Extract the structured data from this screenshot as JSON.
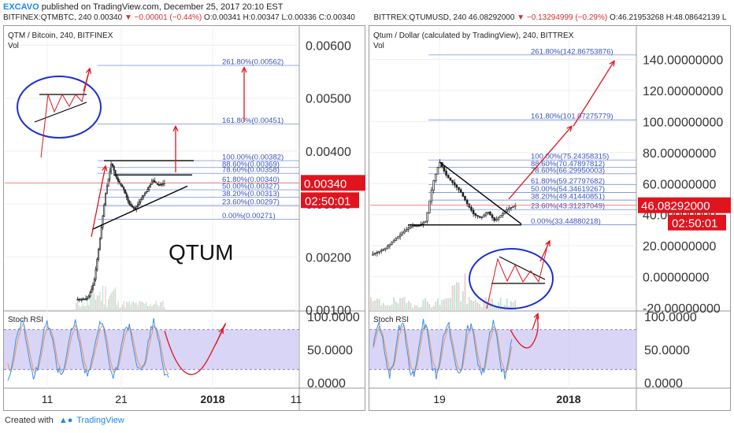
{
  "header": {
    "author": "EXCAVO",
    "published": "published on TradingView.com, December 25, 2017 20:10 EST",
    "left_quote": {
      "symbol": "BITFINEX:QTMBTC, 240",
      "last": "0.00340",
      "change": "▼ −0.00001 (−0.44%)",
      "ohlc": "O:0.00341 H:0.00347 L:0.00336 C:0.00340"
    },
    "right_quote": {
      "symbol": "BITTREX:QTUMUSD, 240",
      "last": "46.08292000",
      "change": "▼ −0.13294999 (−0.29%)",
      "ohlc": "O:46.21953268 H:48.08642139 L"
    }
  },
  "footer": {
    "created_with": "Created with",
    "brand": "TradingView"
  },
  "colors": {
    "candle": "#1f1f1f",
    "fib": "#5b7bd6",
    "arrow": "#e0141e",
    "circle": "#1a2fd0",
    "price_tag": "#e0141e",
    "stoch_band": "#c9c3f2",
    "stoch_k": "#3b8ee8",
    "stoch_d": "#e8975a"
  },
  "chart_data": [
    {
      "id": "left",
      "type": "candlestick",
      "title": "QTM / Bitcoin, 240, BITFINEX",
      "volume_label": "Vol",
      "annotation": "QTUM",
      "y_ticks": [
        "0.00600",
        "0.00500",
        "0.00400",
        "0.00300",
        "0.00200",
        "0.00100"
      ],
      "y_values": [
        0.006,
        0.005,
        0.004,
        0.003,
        0.002,
        0.001
      ],
      "ylim": [
        0.00098,
        0.00632
      ],
      "x_ticks": [
        "11",
        "21",
        "2018",
        "11"
      ],
      "last_price": "0.00340",
      "countdown": "02:50:01",
      "fib_levels": [
        {
          "label": "261.80%(0.00562)",
          "value": 0.00562
        },
        {
          "label": "161.80%(0.00451)",
          "value": 0.00451
        },
        {
          "label": "100.00%(0.00382)",
          "value": 0.00382
        },
        {
          "label": "88.60%(0.00369)",
          "value": 0.00369
        },
        {
          "label": "78.60%(0.00358)",
          "value": 0.00358
        },
        {
          "label": "61.80%(0.00340)",
          "value": 0.0034
        },
        {
          "label": "50.00%(0.00327)",
          "value": 0.00327
        },
        {
          "label": "38.20%(0.00313)",
          "value": 0.00313
        },
        {
          "label": "23.60%(0.00297)",
          "value": 0.00297
        },
        {
          "label": "0.00%(0.00271)",
          "value": 0.00271
        }
      ],
      "stoch": {
        "label": "Stoch RSI",
        "ticks": [
          "100.0000",
          "50.0000",
          "0.0000"
        ],
        "tick_values": [
          100,
          50,
          0
        ]
      }
    },
    {
      "id": "right",
      "type": "candlestick",
      "title": "Qtum / Dollar (calculated by TradingView), 240, BITTREX",
      "volume_label": "Vol",
      "annotation": "",
      "y_ticks": [
        "140.00000000",
        "120.00000000",
        "100.00000000",
        "80.00000000",
        "60.00000000",
        "40.00000000",
        "20.00000000",
        "0.00000000",
        "-20.00000000"
      ],
      "y_values": [
        140,
        120,
        100,
        80,
        60,
        40,
        20,
        0,
        -20
      ],
      "ylim": [
        -22,
        160
      ],
      "x_ticks": [
        "19",
        "2018"
      ],
      "last_price": "46.08292000",
      "countdown": "02:50:01",
      "fib_levels": [
        {
          "label": "261.80%(142.86753876)",
          "value": 142.87
        },
        {
          "label": "161.80%(101.07275779)",
          "value": 101.07
        },
        {
          "label": "100.00%(75.24358315)",
          "value": 75.24
        },
        {
          "label": "88.60%(70.47897812)",
          "value": 70.48
        },
        {
          "label": "78.60%(66.29950003)",
          "value": 66.3
        },
        {
          "label": "61.80%(59.27797682)",
          "value": 59.28
        },
        {
          "label": "50.00%(54.34619267)",
          "value": 54.35
        },
        {
          "label": "38.20%(49.41440851)",
          "value": 49.41
        },
        {
          "label": "23.60%(43.31237049)",
          "value": 43.31
        },
        {
          "label": "0.00%(33.44880218)",
          "value": 33.45
        }
      ],
      "stoch": {
        "label": "Stoch RSI",
        "ticks": [
          "100.0000",
          "50.0000",
          "0.0000"
        ],
        "tick_values": [
          100,
          50,
          0
        ]
      }
    }
  ]
}
